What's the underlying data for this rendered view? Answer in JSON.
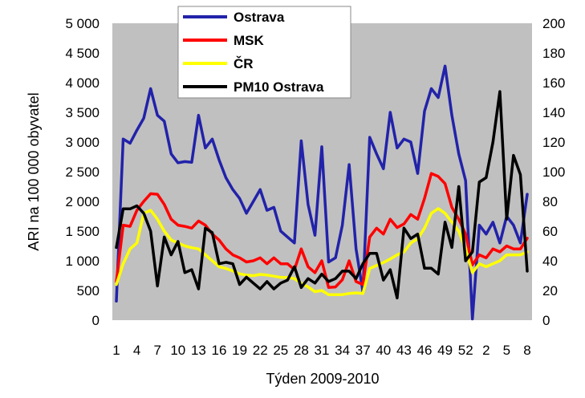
{
  "chart_data": {
    "type": "line",
    "xlabel": "Týden 2009-2010",
    "ylabel": "ARI na 100 000 obyvatel",
    "ylim": [
      0,
      5000
    ],
    "y2lim": [
      0,
      200
    ],
    "yticks": [
      "0",
      "500",
      "1 000",
      "1 500",
      "2 000",
      "2 500",
      "3 000",
      "3 500",
      "4 000",
      "4 500",
      "5 000"
    ],
    "y2ticks": [
      "0",
      "20",
      "40",
      "60",
      "80",
      "100",
      "120",
      "140",
      "160",
      "180",
      "200"
    ],
    "xticks": [
      "1",
      "4",
      "7",
      "10",
      "13",
      "16",
      "19",
      "22",
      "25",
      "28",
      "31",
      "34",
      "37",
      "40",
      "43",
      "46",
      "49",
      "52",
      "2",
      "5",
      "8"
    ],
    "grid": false,
    "legend_position": "top-center",
    "series": [
      {
        "name": "Ostrava",
        "axis": "left",
        "color": "#2222aa",
        "values": [
          320,
          3050,
          2980,
          3200,
          3400,
          3900,
          3450,
          3350,
          2800,
          2650,
          2670,
          2660,
          3450,
          2900,
          3050,
          2700,
          2400,
          2200,
          2050,
          1800,
          2000,
          2200,
          1850,
          1900,
          1500,
          1400,
          1300,
          3020,
          1950,
          1430,
          2920,
          980,
          1050,
          1600,
          2620,
          1200,
          480,
          3080,
          2800,
          2550,
          3500,
          2900,
          3050,
          3000,
          2470,
          3520,
          3900,
          3750,
          4280,
          3450,
          2800,
          2350,
          20,
          1600,
          1450,
          1650,
          1300,
          1750,
          1600,
          1300,
          2120
        ]
      },
      {
        "name": "MSK",
        "axis": "left",
        "color": "#ff0000",
        "values": [
          650,
          1600,
          1580,
          1850,
          2000,
          2130,
          2120,
          1950,
          1700,
          1600,
          1580,
          1550,
          1670,
          1600,
          1450,
          1350,
          1200,
          1100,
          1050,
          980,
          1000,
          1050,
          950,
          1050,
          950,
          950,
          850,
          1200,
          900,
          800,
          1000,
          550,
          560,
          680,
          1000,
          650,
          600,
          1400,
          1550,
          1450,
          1700,
          1560,
          1620,
          1780,
          1700,
          2050,
          2470,
          2420,
          2300,
          1900,
          1700,
          1450,
          930,
          1100,
          1050,
          1200,
          1150,
          1250,
          1200,
          1200,
          1380
        ]
      },
      {
        "name": "ČR",
        "axis": "left",
        "color": "#ffff00",
        "values": [
          600,
          950,
          1200,
          1300,
          1800,
          1850,
          1700,
          1500,
          1350,
          1300,
          1250,
          1220,
          1200,
          1100,
          1000,
          900,
          870,
          830,
          780,
          760,
          750,
          770,
          760,
          740,
          720,
          720,
          700,
          620,
          560,
          480,
          500,
          430,
          430,
          430,
          450,
          460,
          450,
          870,
          920,
          970,
          1030,
          1100,
          1150,
          1300,
          1370,
          1550,
          1800,
          1880,
          1800,
          1650,
          1500,
          1200,
          800,
          950,
          900,
          950,
          1000,
          1100,
          1100,
          1100,
          1150
        ]
      },
      {
        "name": "PM10 Ostrava",
        "axis": "right",
        "color": "#000000",
        "values": [
          49,
          75,
          75,
          77,
          72,
          60,
          23,
          56,
          44,
          53,
          32,
          34,
          21,
          62,
          59,
          38,
          39,
          38,
          24,
          29,
          25,
          21,
          26,
          21,
          25,
          27,
          36,
          22,
          28,
          25,
          31,
          26,
          28,
          33,
          33,
          28,
          38,
          45,
          45,
          27,
          34,
          15,
          62,
          55,
          58,
          35,
          35,
          31,
          66,
          49,
          90,
          40,
          46,
          93,
          96,
          120,
          154,
          68,
          111,
          98,
          33
        ]
      }
    ]
  }
}
